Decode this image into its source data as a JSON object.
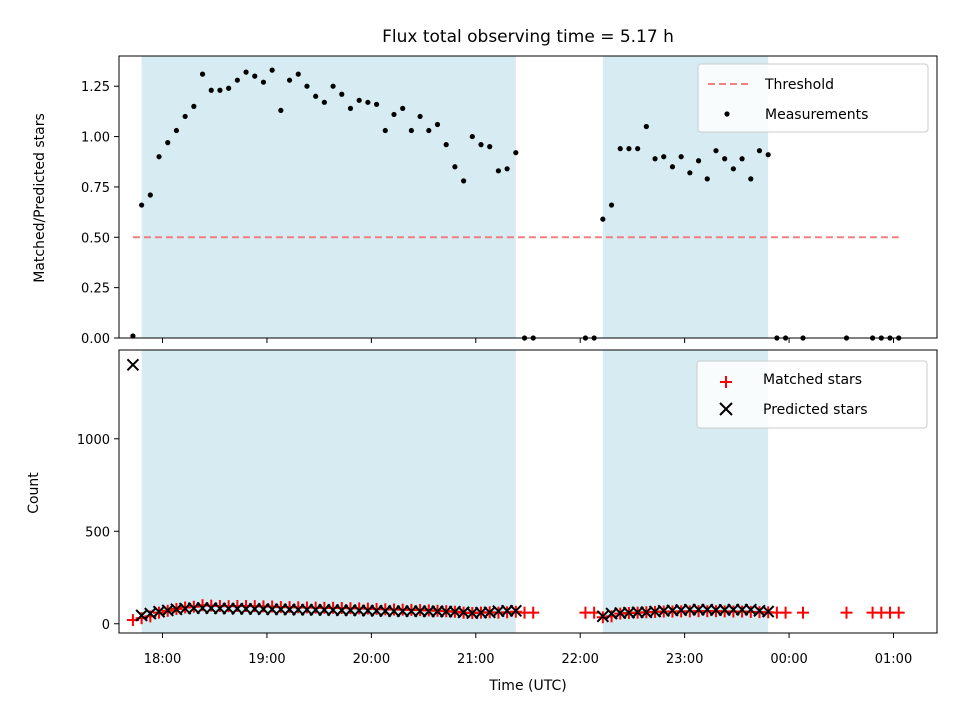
{
  "chart_data": [
    {
      "type": "scatter",
      "title": "Flux total observing time = 5.17 h",
      "xlabel": "",
      "ylabel": "Matched/Predicted stars",
      "x_unit": "time",
      "xlim": [
        "17:35",
        "01:25"
      ],
      "ylim": [
        0,
        1.4
      ],
      "yticks": [
        "0.00",
        "0.25",
        "0.50",
        "0.75",
        "1.00",
        "1.25"
      ],
      "grid": false,
      "legend_position": "top-right",
      "legend": [
        "Threshold",
        "Measurements"
      ],
      "shaded_intervals": [
        [
          "17:48",
          "21:23"
        ],
        [
          "22:13",
          "23:48"
        ]
      ],
      "threshold": {
        "name": "Threshold",
        "y": 0.5,
        "x_start": "17:43",
        "x_end": "01:03",
        "color": "#f08080",
        "style": "dashed"
      },
      "series": [
        {
          "name": "Measurements",
          "color": "#000000",
          "points": [
            [
              "17:43",
              0.01
            ],
            [
              "17:48",
              0.66
            ],
            [
              "17:53",
              0.71
            ],
            [
              "17:58",
              0.9
            ],
            [
              "18:03",
              0.97
            ],
            [
              "18:08",
              1.03
            ],
            [
              "18:13",
              1.1
            ],
            [
              "18:18",
              1.15
            ],
            [
              "18:23",
              1.31
            ],
            [
              "18:28",
              1.23
            ],
            [
              "18:33",
              1.23
            ],
            [
              "18:38",
              1.24
            ],
            [
              "18:43",
              1.28
            ],
            [
              "18:48",
              1.32
            ],
            [
              "18:53",
              1.3
            ],
            [
              "18:58",
              1.27
            ],
            [
              "19:03",
              1.33
            ],
            [
              "19:08",
              1.13
            ],
            [
              "19:13",
              1.28
            ],
            [
              "19:18",
              1.31
            ],
            [
              "19:23",
              1.25
            ],
            [
              "19:28",
              1.2
            ],
            [
              "19:33",
              1.17
            ],
            [
              "19:38",
              1.25
            ],
            [
              "19:43",
              1.21
            ],
            [
              "19:48",
              1.14
            ],
            [
              "19:53",
              1.18
            ],
            [
              "19:58",
              1.17
            ],
            [
              "20:03",
              1.16
            ],
            [
              "20:08",
              1.03
            ],
            [
              "20:13",
              1.11
            ],
            [
              "20:18",
              1.14
            ],
            [
              "20:23",
              1.03
            ],
            [
              "20:28",
              1.1
            ],
            [
              "20:33",
              1.03
            ],
            [
              "20:38",
              1.06
            ],
            [
              "20:43",
              0.96
            ],
            [
              "20:48",
              0.85
            ],
            [
              "20:53",
              0.78
            ],
            [
              "20:58",
              1.0
            ],
            [
              "21:03",
              0.96
            ],
            [
              "21:08",
              0.95
            ],
            [
              "21:13",
              0.83
            ],
            [
              "21:18",
              0.84
            ],
            [
              "21:23",
              0.92
            ],
            [
              "21:28",
              0.0
            ],
            [
              "21:33",
              0.0
            ],
            [
              "22:03",
              0.0
            ],
            [
              "22:08",
              0.0
            ],
            [
              "22:13",
              0.59
            ],
            [
              "22:18",
              0.66
            ],
            [
              "22:23",
              0.94
            ],
            [
              "22:28",
              0.94
            ],
            [
              "22:33",
              0.94
            ],
            [
              "22:38",
              1.05
            ],
            [
              "22:43",
              0.89
            ],
            [
              "22:48",
              0.9
            ],
            [
              "22:53",
              0.85
            ],
            [
              "22:58",
              0.9
            ],
            [
              "23:03",
              0.82
            ],
            [
              "23:08",
              0.88
            ],
            [
              "23:13",
              0.79
            ],
            [
              "23:18",
              0.93
            ],
            [
              "23:23",
              0.89
            ],
            [
              "23:28",
              0.84
            ],
            [
              "23:33",
              0.89
            ],
            [
              "23:38",
              0.79
            ],
            [
              "23:43",
              0.93
            ],
            [
              "23:48",
              0.91
            ],
            [
              "23:53",
              0.0
            ],
            [
              "23:58",
              0.0
            ],
            [
              "00:08",
              0.0
            ],
            [
              "00:33",
              0.0
            ],
            [
              "00:48",
              0.0
            ],
            [
              "00:53",
              0.0
            ],
            [
              "00:58",
              0.0
            ],
            [
              "01:03",
              0.0
            ]
          ]
        }
      ]
    },
    {
      "type": "scatter",
      "title": "",
      "xlabel": "Time (UTC)",
      "ylabel": "Count",
      "x_unit": "time",
      "xlim": [
        "17:35",
        "01:25"
      ],
      "ylim": [
        -50,
        1480
      ],
      "yticks": [
        "0",
        "500",
        "1000"
      ],
      "xticks": [
        "18:00",
        "19:00",
        "20:00",
        "21:00",
        "22:00",
        "23:00",
        "00:00",
        "01:00"
      ],
      "grid": false,
      "legend_position": "top-right",
      "legend": [
        "Matched stars",
        "Predicted stars"
      ],
      "shaded_intervals": [
        [
          "17:48",
          "21:23"
        ],
        [
          "22:13",
          "23:48"
        ]
      ],
      "series": [
        {
          "name": "Matched stars",
          "marker": "plus",
          "color": "#ff0000",
          "points": [
            [
              "17:43",
              20
            ],
            [
              "17:48",
              30
            ],
            [
              "17:53",
              40
            ],
            [
              "17:58",
              60
            ],
            [
              "18:03",
              70
            ],
            [
              "18:08",
              80
            ],
            [
              "18:13",
              88
            ],
            [
              "18:18",
              92
            ],
            [
              "18:23",
              100
            ],
            [
              "18:28",
              98
            ],
            [
              "18:33",
              96
            ],
            [
              "18:38",
              95
            ],
            [
              "18:43",
              96
            ],
            [
              "18:48",
              96
            ],
            [
              "18:53",
              95
            ],
            [
              "18:58",
              94
            ],
            [
              "19:03",
              93
            ],
            [
              "19:08",
              90
            ],
            [
              "19:13",
              90
            ],
            [
              "19:18",
              89
            ],
            [
              "19:23",
              88
            ],
            [
              "19:28",
              87
            ],
            [
              "19:33",
              86
            ],
            [
              "19:38",
              86
            ],
            [
              "19:43",
              85
            ],
            [
              "19:48",
              84
            ],
            [
              "19:53",
              83
            ],
            [
              "19:58",
              82
            ],
            [
              "20:03",
              80
            ],
            [
              "20:08",
              78
            ],
            [
              "20:13",
              77
            ],
            [
              "20:18",
              76
            ],
            [
              "20:23",
              75
            ],
            [
              "20:28",
              74
            ],
            [
              "20:33",
              72
            ],
            [
              "20:38",
              70
            ],
            [
              "20:43",
              68
            ],
            [
              "20:48",
              65
            ],
            [
              "20:53",
              60
            ],
            [
              "20:58",
              58
            ],
            [
              "21:03",
              60
            ],
            [
              "21:08",
              62
            ],
            [
              "21:13",
              60
            ],
            [
              "21:18",
              62
            ],
            [
              "21:23",
              65
            ],
            [
              "21:28",
              60
            ],
            [
              "21:33",
              60
            ],
            [
              "22:03",
              60
            ],
            [
              "22:08",
              60
            ],
            [
              "22:13",
              35
            ],
            [
              "22:18",
              40
            ],
            [
              "22:23",
              55
            ],
            [
              "22:28",
              58
            ],
            [
              "22:33",
              60
            ],
            [
              "22:38",
              62
            ],
            [
              "22:43",
              64
            ],
            [
              "22:48",
              66
            ],
            [
              "22:53",
              66
            ],
            [
              "22:58",
              67
            ],
            [
              "23:03",
              67
            ],
            [
              "23:08",
              68
            ],
            [
              "23:13",
              68
            ],
            [
              "23:18",
              68
            ],
            [
              "23:23",
              67
            ],
            [
              "23:28",
              66
            ],
            [
              "23:33",
              66
            ],
            [
              "23:38",
              64
            ],
            [
              "23:43",
              63
            ],
            [
              "23:48",
              62
            ],
            [
              "23:53",
              60
            ],
            [
              "23:58",
              60
            ],
            [
              "00:08",
              60
            ],
            [
              "00:33",
              60
            ],
            [
              "00:48",
              60
            ],
            [
              "00:53",
              60
            ],
            [
              "00:58",
              60
            ],
            [
              "01:03",
              60
            ]
          ]
        },
        {
          "name": "Predicted stars",
          "marker": "x",
          "color": "#000000",
          "points": [
            [
              "17:43",
              1400
            ],
            [
              "17:48",
              45
            ],
            [
              "17:53",
              55
            ],
            [
              "17:58",
              65
            ],
            [
              "18:03",
              72
            ],
            [
              "18:08",
              78
            ],
            [
              "18:13",
              82
            ],
            [
              "18:18",
              84
            ],
            [
              "18:23",
              85
            ],
            [
              "18:28",
              84
            ],
            [
              "18:33",
              83
            ],
            [
              "18:38",
              82
            ],
            [
              "18:43",
              81
            ],
            [
              "18:48",
              80
            ],
            [
              "18:53",
              80
            ],
            [
              "18:58",
              79
            ],
            [
              "19:03",
              78
            ],
            [
              "19:08",
              78
            ],
            [
              "19:13",
              77
            ],
            [
              "19:18",
              76
            ],
            [
              "19:23",
              76
            ],
            [
              "19:28",
              75
            ],
            [
              "19:33",
              75
            ],
            [
              "19:38",
              74
            ],
            [
              "19:43",
              73
            ],
            [
              "19:48",
              73
            ],
            [
              "19:53",
              72
            ],
            [
              "19:58",
              71
            ],
            [
              "20:03",
              70
            ],
            [
              "20:08",
              69
            ],
            [
              "20:13",
              68
            ],
            [
              "20:18",
              68
            ],
            [
              "20:23",
              68
            ],
            [
              "20:28",
              68
            ],
            [
              "20:33",
              67
            ],
            [
              "20:38",
              67
            ],
            [
              "20:43",
              66
            ],
            [
              "20:48",
              65
            ],
            [
              "20:53",
              62
            ],
            [
              "20:58",
              58
            ],
            [
              "21:03",
              60
            ],
            [
              "21:08",
              62
            ],
            [
              "21:13",
              68
            ],
            [
              "21:18",
              70
            ],
            [
              "21:23",
              70
            ],
            [
              "22:13",
              40
            ],
            [
              "22:18",
              55
            ],
            [
              "22:23",
              58
            ],
            [
              "22:28",
              60
            ],
            [
              "22:33",
              62
            ],
            [
              "22:38",
              62
            ],
            [
              "22:43",
              66
            ],
            [
              "22:48",
              70
            ],
            [
              "22:53",
              72
            ],
            [
              "22:58",
              74
            ],
            [
              "23:03",
              76
            ],
            [
              "23:08",
              76
            ],
            [
              "23:13",
              76
            ],
            [
              "23:18",
              74
            ],
            [
              "23:23",
              75
            ],
            [
              "23:28",
              76
            ],
            [
              "23:33",
              76
            ],
            [
              "23:38",
              76
            ],
            [
              "23:43",
              70
            ],
            [
              "23:48",
              66
            ]
          ]
        }
      ]
    }
  ]
}
